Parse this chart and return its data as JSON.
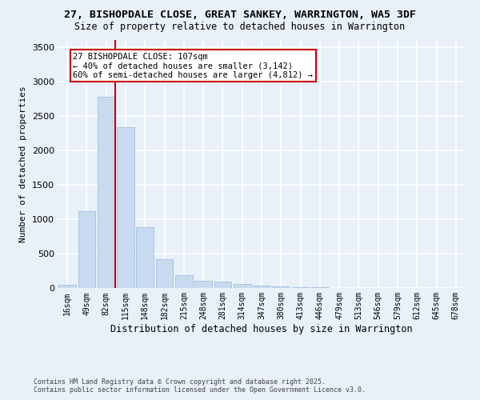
{
  "title_line1": "27, BISHOPDALE CLOSE, GREAT SANKEY, WARRINGTON, WA5 3DF",
  "title_line2": "Size of property relative to detached houses in Warrington",
  "xlabel": "Distribution of detached houses by size in Warrington",
  "ylabel": "Number of detached properties",
  "bar_color": "#c8daf0",
  "bar_edge_color": "#a0bede",
  "categories": [
    "16sqm",
    "49sqm",
    "82sqm",
    "115sqm",
    "148sqm",
    "182sqm",
    "215sqm",
    "248sqm",
    "281sqm",
    "314sqm",
    "347sqm",
    "380sqm",
    "413sqm",
    "446sqm",
    "479sqm",
    "513sqm",
    "546sqm",
    "579sqm",
    "612sqm",
    "645sqm",
    "678sqm"
  ],
  "values": [
    50,
    1120,
    2780,
    2340,
    880,
    420,
    190,
    110,
    90,
    55,
    30,
    25,
    15,
    10,
    5,
    5,
    3,
    2,
    2,
    1,
    1
  ],
  "ylim": [
    0,
    3600
  ],
  "yticks": [
    0,
    500,
    1000,
    1500,
    2000,
    2500,
    3000,
    3500
  ],
  "vline_color": "#cc0000",
  "vline_x_index": 2,
  "annotation_text": "27 BISHOPDALE CLOSE: 107sqm\n← 40% of detached houses are smaller (3,142)\n60% of semi-detached houses are larger (4,812) →",
  "annotation_box_color": "#ffffff",
  "annotation_box_edge": "#cc0000",
  "plot_bg_color": "#e8f0f8",
  "fig_bg_color": "#e8f0f8",
  "grid_color": "#ffffff",
  "footer_line1": "Contains HM Land Registry data © Crown copyright and database right 2025.",
  "footer_line2": "Contains public sector information licensed under the Open Government Licence v3.0.",
  "title_fontsize": 9.5,
  "subtitle_fontsize": 8.5,
  "xlabel_fontsize": 8.5,
  "ylabel_fontsize": 8,
  "tick_fontsize": 7,
  "footer_fontsize": 6,
  "annotation_fontsize": 7.5
}
